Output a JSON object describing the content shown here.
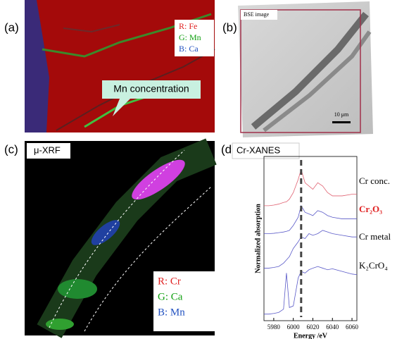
{
  "panels": {
    "a": {
      "label": "(a)",
      "legend": [
        "R: Fe",
        "G: Mn",
        "B: Ca"
      ],
      "callout": "Mn concentration"
    },
    "b": {
      "label": "(b)",
      "image_label": "BSE image",
      "scale_bar": "10 μm"
    },
    "c": {
      "label": "(c)",
      "image_label": "μ-XRF",
      "legend": [
        "R: Cr",
        "G: Ca",
        "B: Mn"
      ]
    },
    "d": {
      "label": "(d)",
      "image_label": "Cr-XANES"
    }
  },
  "chart_data": {
    "type": "line",
    "xlabel": "Energy /eV",
    "ylabel": "Normalized absorption",
    "x": [
      5970,
      5975,
      5980,
      5985,
      5990,
      5993,
      5996,
      6000,
      6005,
      6008,
      6012,
      6016,
      6020,
      6025,
      6030,
      6035,
      6040,
      6050,
      6060,
      6065
    ],
    "series": [
      {
        "name": "Cr conc.",
        "color": "#e06070",
        "values": [
          3.5,
          3.5,
          3.52,
          3.55,
          3.6,
          3.62,
          3.7,
          3.9,
          4.3,
          4.6,
          4.2,
          4.1,
          4.0,
          4.2,
          4.1,
          3.9,
          3.8,
          3.8,
          3.85,
          3.85
        ]
      },
      {
        "name": "Cr₂O₃",
        "color": "#5a5ac8",
        "values": [
          2.65,
          2.65,
          2.66,
          2.68,
          2.7,
          2.72,
          2.75,
          2.9,
          3.15,
          3.5,
          3.3,
          3.25,
          3.2,
          3.35,
          3.3,
          3.2,
          3.15,
          3.1,
          3.1,
          3.1
        ]
      },
      {
        "name": "Cr metal",
        "color": "#5a5ac8",
        "values": [
          1.6,
          1.6,
          1.62,
          1.65,
          1.75,
          1.85,
          1.95,
          2.2,
          2.4,
          2.55,
          2.5,
          2.65,
          2.6,
          2.65,
          2.75,
          2.7,
          2.65,
          2.6,
          2.55,
          2.55
        ]
      },
      {
        "name": "K₂CrO₄",
        "color": "#5a5ac8",
        "values": [
          0.2,
          0.2,
          0.22,
          0.25,
          0.35,
          1.45,
          0.4,
          0.45,
          1.3,
          1.5,
          1.45,
          1.55,
          1.6,
          1.65,
          1.6,
          1.55,
          1.58,
          1.5,
          1.42,
          1.4
        ]
      }
    ],
    "reference_x": 6008,
    "xlim": [
      5970,
      6065
    ],
    "ylim": [
      0,
      5
    ],
    "xticks": [
      5980,
      6000,
      6020,
      6040,
      6060
    ]
  }
}
